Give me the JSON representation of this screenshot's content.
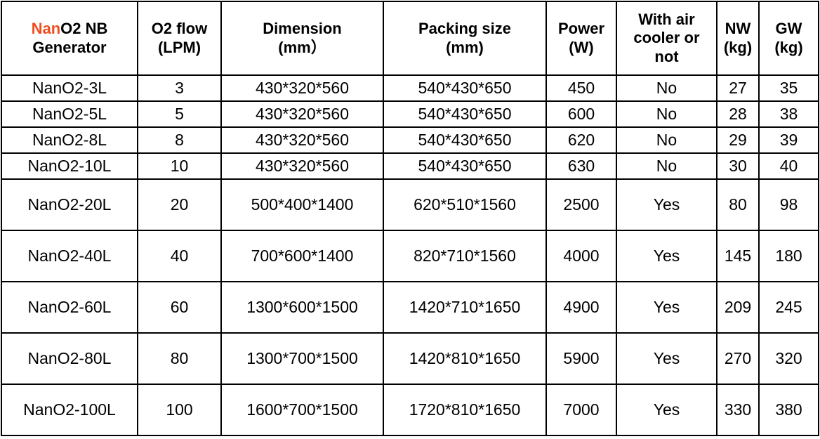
{
  "accent_color": "#f04e1e",
  "header": {
    "generator_accent": "Nan",
    "generator_rest": "O2 NB",
    "generator_line2": "Generator",
    "columns": [
      {
        "line1": "O2 flow",
        "line2": "(LPM)"
      },
      {
        "line1": "Dimension",
        "line2": "(mm）"
      },
      {
        "line1": "Packing size",
        "line2": "(mm)"
      },
      {
        "line1": "Power",
        "line2": "(W)"
      },
      {
        "line1": "With air cooler or not",
        "line2": ""
      },
      {
        "line1": "NW",
        "line2": "(kg)"
      },
      {
        "line1": "GW",
        "line2": "(kg)"
      }
    ]
  },
  "rows": [
    [
      "NanO2-3L",
      "3",
      "430*320*560",
      "540*430*650",
      "450",
      "No",
      "27",
      "35"
    ],
    [
      "NanO2-5L",
      "5",
      "430*320*560",
      "540*430*650",
      "600",
      "No",
      "28",
      "38"
    ],
    [
      "NanO2-8L",
      "8",
      "430*320*560",
      "540*430*650",
      "620",
      "No",
      "29",
      "39"
    ],
    [
      "NanO2-10L",
      "10",
      "430*320*560",
      "540*430*650",
      "630",
      "No",
      "30",
      "40"
    ],
    [
      "NanO2-20L",
      "20",
      "500*400*1400",
      "620*510*1560",
      "2500",
      "Yes",
      "80",
      "98"
    ],
    [
      "NanO2-40L",
      "40",
      "700*600*1400",
      "820*710*1560",
      "4000",
      "Yes",
      "145",
      "180"
    ],
    [
      "NanO2-60L",
      "60",
      "1300*600*1500",
      "1420*710*1650",
      "4900",
      "Yes",
      "209",
      "245"
    ],
    [
      "NanO2-80L",
      "80",
      "1300*700*1500",
      "1420*810*1650",
      "5900",
      "Yes",
      "270",
      "320"
    ],
    [
      "NanO2-100L",
      "100",
      "1600*700*1500",
      "1720*810*1650",
      "7000",
      "Yes",
      "330",
      "380"
    ]
  ]
}
